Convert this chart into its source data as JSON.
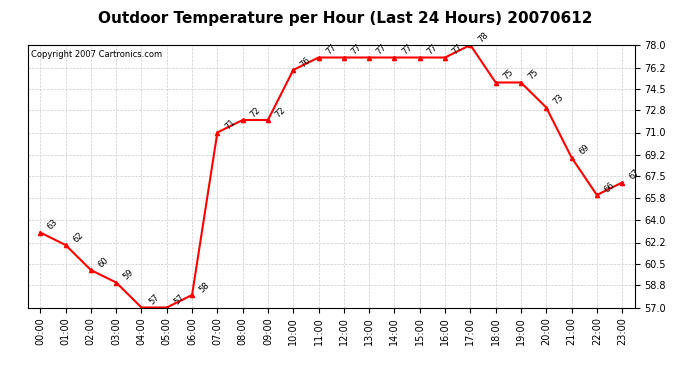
{
  "title": "Outdoor Temperature per Hour (Last 24 Hours) 20070612",
  "copyright": "Copyright 2007 Cartronics.com",
  "hours": [
    "00:00",
    "01:00",
    "02:00",
    "03:00",
    "04:00",
    "05:00",
    "06:00",
    "07:00",
    "08:00",
    "09:00",
    "10:00",
    "11:00",
    "12:00",
    "13:00",
    "14:00",
    "15:00",
    "16:00",
    "17:00",
    "18:00",
    "19:00",
    "20:00",
    "21:00",
    "22:00",
    "23:00"
  ],
  "temps": [
    63,
    62,
    60,
    59,
    57,
    57,
    58,
    71,
    72,
    72,
    76,
    77,
    77,
    77,
    77,
    77,
    77,
    78,
    75,
    75,
    73,
    69,
    66,
    67
  ],
  "ylim_min": 57.0,
  "ylim_max": 78.0,
  "yticks": [
    57.0,
    58.8,
    60.5,
    62.2,
    64.0,
    65.8,
    67.5,
    69.2,
    71.0,
    72.8,
    74.5,
    76.2,
    78.0
  ],
  "line_color": "red",
  "marker": "^",
  "marker_size": 3,
  "background_color": "white",
  "grid_color": "#cccccc",
  "title_fontsize": 11,
  "label_fontsize": 6,
  "copyright_fontsize": 6,
  "tick_fontsize": 7,
  "annotation_fontsize": 6
}
